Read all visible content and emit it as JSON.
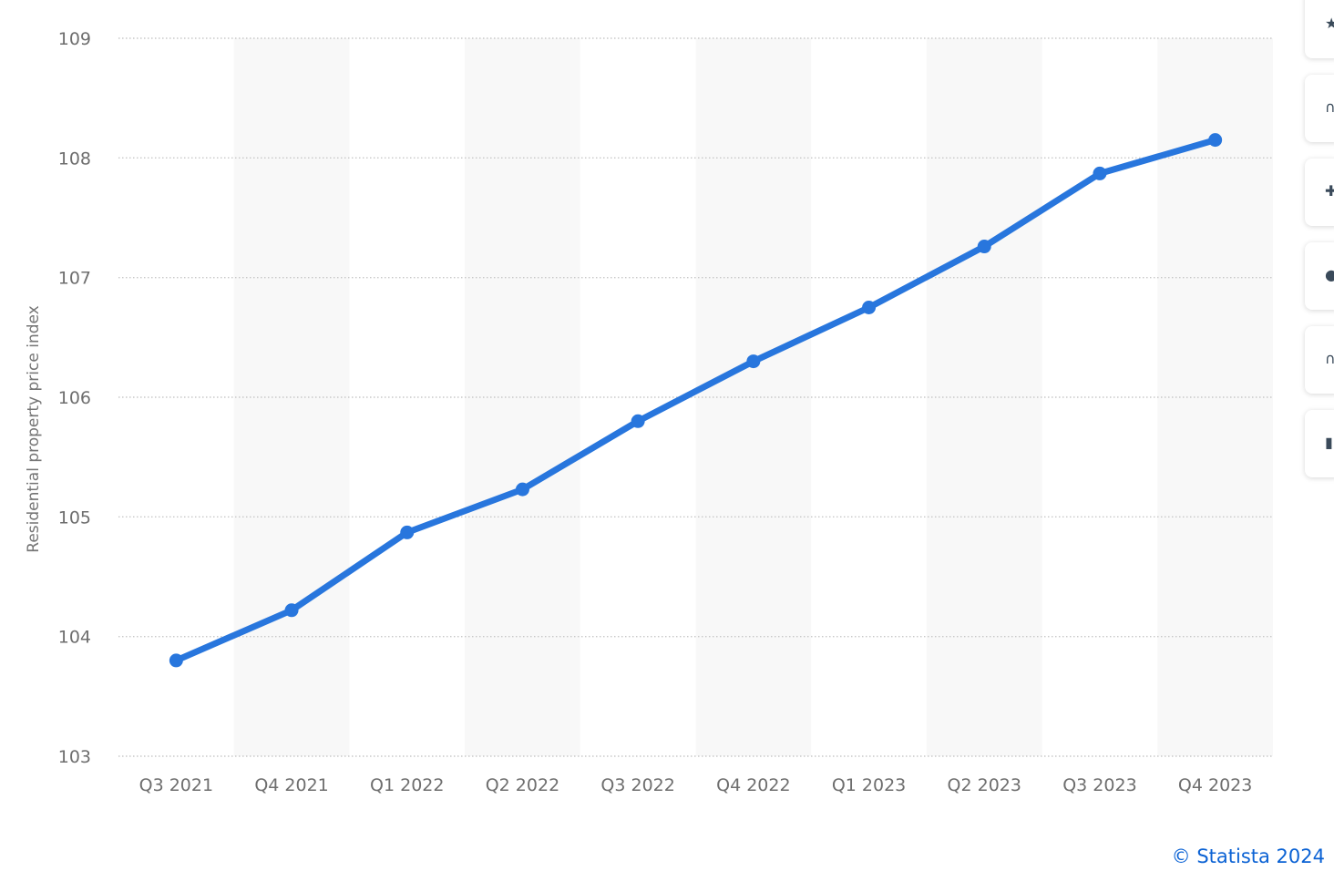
{
  "chart_data": {
    "type": "line",
    "title": "",
    "xlabel": "",
    "ylabel": "Residential property price index",
    "categories": [
      "Q3 2021",
      "Q4 2021",
      "Q1 2022",
      "Q2 2022",
      "Q3 2022",
      "Q4 2022",
      "Q1 2023",
      "Q2 2023",
      "Q3 2023",
      "Q4 2023"
    ],
    "series": [
      {
        "values": [
          103.8,
          104.22,
          104.87,
          105.23,
          105.8,
          106.3,
          106.75,
          107.26,
          107.87,
          108.15
        ]
      }
    ],
    "ylim": [
      103,
      109
    ],
    "yticks": [
      103,
      104,
      105,
      106,
      107,
      108,
      109
    ],
    "grid": true,
    "legend": "none",
    "line_color": "#2876dd",
    "band_color": "#f8f8f8",
    "grid_color": "#c8c8c8"
  },
  "credit": "© Statista 2024",
  "toolbar": {
    "buttons": [
      {
        "name": "favorite-star-icon",
        "glyph": "★"
      },
      {
        "name": "notification-bell-icon",
        "glyph": "∩"
      },
      {
        "name": "settings-gear-icon",
        "glyph": "✚"
      },
      {
        "name": "share-icon",
        "glyph": "●"
      },
      {
        "name": "citation-quote-icon",
        "glyph": "∩"
      },
      {
        "name": "print-icon",
        "glyph": "▮"
      }
    ]
  }
}
